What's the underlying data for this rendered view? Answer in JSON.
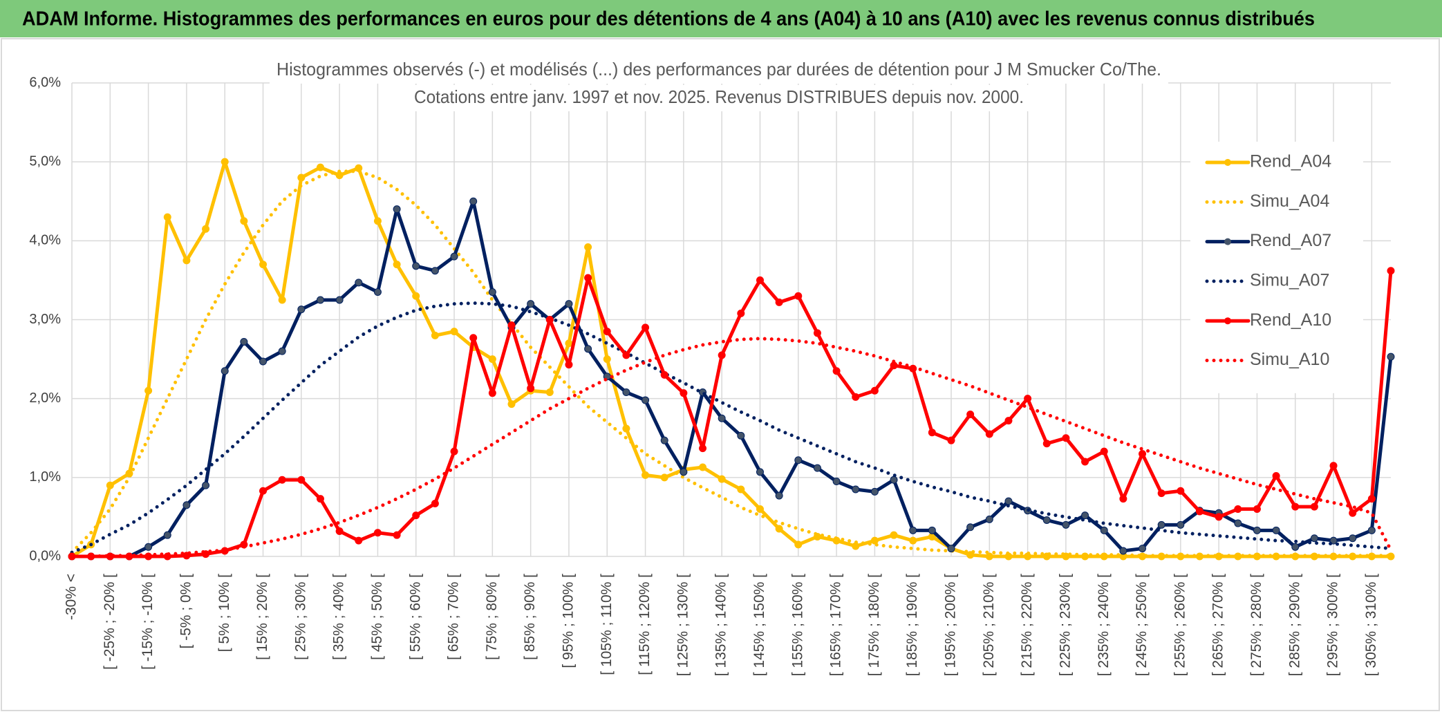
{
  "chart_data": {
    "type": "line",
    "title": "ADAM Informe. Histogrammes des performances en euros pour des détentions de 4 ans (A04) à 10 ans (A10) avec les revenus connus distribués",
    "subtitle": [
      "Histogrammes observés (-) et modélisés (...) des performances par durées de détention pour J M Smucker Co/The.",
      "Cotations entre janv. 1997 et nov. 2025. Revenus DISTRIBUES depuis nov. 2000."
    ],
    "categories": [
      "-30% <",
      null,
      "[ -25% ; -20% [",
      null,
      "[ -15% ; -10% [",
      null,
      "[ -5% ; 0% [",
      null,
      "[ 5% ; 10% [",
      null,
      "[ 15% ; 20% [",
      null,
      "[ 25% ; 30% [",
      null,
      "[ 35% ; 40% [",
      null,
      "[ 45% ; 50% [",
      null,
      "[ 55% ; 60% [",
      null,
      "[ 65% ; 70% [",
      null,
      "[ 75% ; 80% [",
      null,
      "[ 85% ; 90% [",
      null,
      "[ 95% ; 100% [",
      null,
      "[ 105% ; 110% [",
      null,
      "[ 115% ; 120% [",
      null,
      "[ 125% ; 130% [",
      null,
      "[ 135% ; 140% [",
      null,
      "[ 145% ; 150% [",
      null,
      "[ 155% ; 160% [",
      null,
      "[ 165% ; 170% [",
      null,
      "[ 175% ; 180% [",
      null,
      "[ 185% ; 190% [",
      null,
      "[ 195% ; 200% [",
      null,
      "[ 205% ; 210% [",
      null,
      "[ 215% ; 220% [",
      null,
      "[ 225% ; 230% [",
      null,
      "[ 235% ; 240% [",
      null,
      "[ 245% ; 250% [",
      null,
      "[ 255% ; 260% [",
      null,
      "[ 265% ; 270% [",
      null,
      "[ 275% ; 280% [",
      null,
      "[ 285% ; 290% [",
      null,
      "[ 295% ; 300% [",
      null,
      "[ 305% ; 310% [",
      null
    ],
    "series": [
      {
        "name": "Rend_A04",
        "color": "#ffc000",
        "style": "solid",
        "values": [
          0,
          0.15,
          0.9,
          1.05,
          2.1,
          4.3,
          3.75,
          4.15,
          5.0,
          4.25,
          3.7,
          3.25,
          4.8,
          4.93,
          4.83,
          4.92,
          4.25,
          3.7,
          3.3,
          2.8,
          2.85,
          2.65,
          2.5,
          1.93,
          2.1,
          2.08,
          2.7,
          3.92,
          2.5,
          1.62,
          1.03,
          1.0,
          1.1,
          1.13,
          0.98,
          0.85,
          0.6,
          0.35,
          0.15,
          0.25,
          0.2,
          0.13,
          0.2,
          0.27,
          0.2,
          0.25,
          0.1,
          0.02,
          0,
          0,
          0,
          0,
          0,
          0,
          0,
          0,
          0,
          0,
          0,
          0,
          0,
          0,
          0,
          0,
          0,
          0,
          0,
          0,
          0,
          0
        ]
      },
      {
        "name": "Simu_A04",
        "color": "#ffc000",
        "style": "dotted",
        "values": [
          0.05,
          0.3,
          0.6,
          1.0,
          1.5,
          2.0,
          2.5,
          3.0,
          3.45,
          3.85,
          4.2,
          4.5,
          4.7,
          4.82,
          4.88,
          4.88,
          4.8,
          4.65,
          4.45,
          4.2,
          3.9,
          3.6,
          3.25,
          2.95,
          2.65,
          2.4,
          2.15,
          1.9,
          1.7,
          1.5,
          1.3,
          1.15,
          1.0,
          0.87,
          0.75,
          0.62,
          0.52,
          0.43,
          0.35,
          0.28,
          0.23,
          0.18,
          0.15,
          0.12,
          0.1,
          0.08,
          0.07,
          0.06,
          0.05,
          0.04,
          0.04,
          0.03,
          0.03,
          0.02,
          0.02,
          0.02,
          0.01,
          0.01,
          0.01,
          0.01,
          0.01,
          0.01,
          0.01,
          0.01,
          0.01,
          0.01,
          0.01,
          0.01,
          0.01,
          0.01
        ]
      },
      {
        "name": "Rend_A07",
        "color": "#002060",
        "style": "solid",
        "values": [
          0,
          0,
          0,
          0,
          0.12,
          0.27,
          0.65,
          0.9,
          2.35,
          2.72,
          2.47,
          2.6,
          3.13,
          3.25,
          3.25,
          3.47,
          3.35,
          4.4,
          3.68,
          3.62,
          3.8,
          4.5,
          3.35,
          2.9,
          3.2,
          3.0,
          3.2,
          2.63,
          2.28,
          2.08,
          1.98,
          1.47,
          1.07,
          2.08,
          1.75,
          1.53,
          1.07,
          0.77,
          1.22,
          1.12,
          0.95,
          0.85,
          0.82,
          0.97,
          0.33,
          0.33,
          0.1,
          0.37,
          0.47,
          0.7,
          0.58,
          0.46,
          0.4,
          0.52,
          0.33,
          0.07,
          0.1,
          0.4,
          0.4,
          0.58,
          0.55,
          0.42,
          0.33,
          0.33,
          0.12,
          0.23,
          0.2,
          0.23,
          0.33,
          2.53
        ]
      },
      {
        "name": "Simu_A07",
        "color": "#002060",
        "style": "dotted",
        "values": [
          0.05,
          0.15,
          0.28,
          0.4,
          0.55,
          0.72,
          0.9,
          1.1,
          1.3,
          1.52,
          1.75,
          1.98,
          2.2,
          2.42,
          2.6,
          2.78,
          2.92,
          3.03,
          3.12,
          3.17,
          3.2,
          3.21,
          3.2,
          3.17,
          3.1,
          3.02,
          2.93,
          2.82,
          2.7,
          2.58,
          2.45,
          2.32,
          2.2,
          2.07,
          1.95,
          1.83,
          1.72,
          1.6,
          1.5,
          1.4,
          1.3,
          1.2,
          1.12,
          1.03,
          0.95,
          0.88,
          0.82,
          0.75,
          0.7,
          0.64,
          0.59,
          0.54,
          0.5,
          0.46,
          0.42,
          0.39,
          0.36,
          0.33,
          0.3,
          0.28,
          0.26,
          0.24,
          0.22,
          0.2,
          0.19,
          0.17,
          0.16,
          0.14,
          0.12,
          0.1
        ]
      },
      {
        "name": "Rend_A10",
        "color": "#ff0000",
        "style": "solid",
        "values": [
          0,
          0,
          0,
          0,
          0,
          0,
          0.01,
          0.03,
          0.07,
          0.15,
          0.83,
          0.97,
          0.97,
          0.73,
          0.32,
          0.2,
          0.3,
          0.27,
          0.52,
          0.67,
          1.33,
          2.77,
          2.07,
          2.93,
          2.13,
          3.0,
          2.43,
          3.53,
          2.85,
          2.55,
          2.9,
          2.3,
          2.07,
          1.37,
          2.55,
          3.08,
          3.5,
          3.22,
          3.3,
          2.83,
          2.35,
          2.02,
          2.1,
          2.42,
          2.38,
          1.57,
          1.47,
          1.8,
          1.55,
          1.72,
          2.0,
          1.43,
          1.5,
          1.2,
          1.33,
          0.73,
          1.3,
          0.8,
          0.83,
          0.57,
          0.5,
          0.6,
          0.6,
          1.02,
          0.63,
          0.63,
          1.15,
          0.55,
          0.73,
          3.62
        ]
      },
      {
        "name": "Simu_A10",
        "color": "#ff0000",
        "style": "dotted",
        "values": [
          0,
          0,
          0.01,
          0.01,
          0.02,
          0.03,
          0.04,
          0.06,
          0.08,
          0.12,
          0.17,
          0.22,
          0.28,
          0.35,
          0.43,
          0.52,
          0.62,
          0.73,
          0.85,
          0.98,
          1.12,
          1.27,
          1.42,
          1.57,
          1.72,
          1.87,
          2.0,
          2.13,
          2.25,
          2.36,
          2.46,
          2.55,
          2.62,
          2.68,
          2.72,
          2.75,
          2.76,
          2.75,
          2.73,
          2.7,
          2.65,
          2.6,
          2.54,
          2.47,
          2.4,
          2.32,
          2.24,
          2.16,
          2.07,
          1.98,
          1.89,
          1.8,
          1.71,
          1.62,
          1.53,
          1.44,
          1.36,
          1.28,
          1.2,
          1.12,
          1.05,
          0.98,
          0.91,
          0.85,
          0.79,
          0.73,
          0.68,
          0.63,
          0.55,
          0.08
        ]
      }
    ],
    "ylim": [
      0,
      6
    ],
    "yticks": [
      {
        "value": 0,
        "label": "0,0%"
      },
      {
        "value": 1,
        "label": "1,0%"
      },
      {
        "value": 2,
        "label": "2,0%"
      },
      {
        "value": 3,
        "label": "3,0%"
      },
      {
        "value": 4,
        "label": "4,0%"
      },
      {
        "value": 5,
        "label": "5,0%"
      },
      {
        "value": 6,
        "label": "6,0%"
      }
    ],
    "grid": true,
    "legend": "right"
  }
}
